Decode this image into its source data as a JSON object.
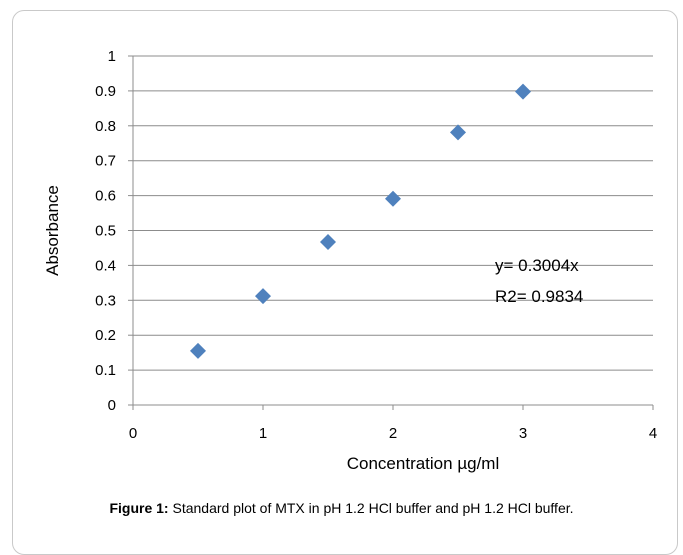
{
  "chart_data": {
    "type": "scatter",
    "xlabel": "Concentration µg/ml",
    "ylabel": "Absorbance",
    "xlim": [
      0,
      4
    ],
    "ylim": [
      0,
      1
    ],
    "x_ticks": [
      "0",
      "1",
      "2",
      "3",
      "4"
    ],
    "y_ticks": [
      "0",
      "0.1",
      "0.2",
      "0.3",
      "0.4",
      "0.5",
      "0.6",
      "0.7",
      "0.8",
      "0.9",
      "1"
    ],
    "grid": "horizontal",
    "marker": "diamond",
    "color": "#4f81bd",
    "points": [
      {
        "x": 0.5,
        "y": 0.155
      },
      {
        "x": 1.0,
        "y": 0.312
      },
      {
        "x": 1.5,
        "y": 0.467
      },
      {
        "x": 2.0,
        "y": 0.591
      },
      {
        "x": 2.5,
        "y": 0.781
      },
      {
        "x": 3.0,
        "y": 0.898
      }
    ],
    "annotations": [
      "y= 0.3004x",
      "R2= 0.9834"
    ]
  },
  "caption": {
    "label": "Figure 1:",
    "text": "Standard plot of MTX in pH 1.2 HCl buffer and pH 1.2 HCl buffer."
  }
}
